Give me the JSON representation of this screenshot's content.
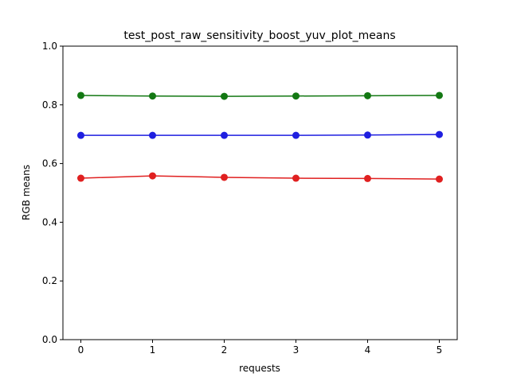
{
  "chart_data": {
    "type": "line",
    "title": "test_post_raw_sensitivity_boost_yuv_plot_means",
    "xlabel": "requests",
    "ylabel": "RGB means",
    "x": [
      0,
      1,
      2,
      3,
      4,
      5
    ],
    "series": [
      {
        "color": "#e02020",
        "values": [
          0.55,
          0.558,
          0.553,
          0.55,
          0.549,
          0.547
        ]
      },
      {
        "color": "#1f1fe0",
        "values": [
          0.696,
          0.696,
          0.696,
          0.696,
          0.697,
          0.699
        ]
      },
      {
        "color": "#137813",
        "values": [
          0.832,
          0.83,
          0.829,
          0.83,
          0.831,
          0.832
        ]
      }
    ],
    "xlim": [
      -0.25,
      5.25
    ],
    "xticks": [
      0,
      1,
      2,
      3,
      4,
      5
    ],
    "ylim": [
      0,
      1
    ],
    "yticks": [
      {
        "value": 0,
        "label": "0.0"
      },
      0.2,
      0.4,
      0.6,
      0.8,
      {
        "value": 1,
        "label": "1.0"
      }
    ]
  }
}
